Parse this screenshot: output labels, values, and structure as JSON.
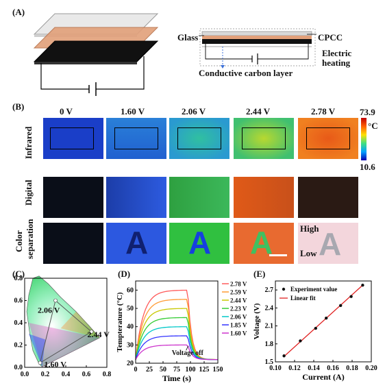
{
  "panels": {
    "A": {
      "label": "(A)",
      "layers_label_glass": "Glass",
      "layers_label_cpcc": "CPCC",
      "layers_label_heating_1": "Electric",
      "layers_label_heating_2": "heating",
      "layers_label_carbon": "Conductive carbon layer"
    },
    "B": {
      "label": "(B)",
      "voltages": [
        "0 V",
        "1.60 V",
        "2.06  V",
        "2.44 V",
        "2.78 V"
      ],
      "row_labels": [
        "Infrared",
        "Digital",
        "Color separation"
      ],
      "row_label_color_1": "Color",
      "row_label_color_2": "separation",
      "colorbar_max": "73.9",
      "colorbar_min": "10.6",
      "colorbar_unit": "°C",
      "high_label": "High",
      "low_label": "Low",
      "letter": "A"
    },
    "C": {
      "label": "(C)",
      "point_labels": [
        "2.06 V",
        "2.44 V",
        "1.60 V"
      ]
    },
    "D": {
      "label": "(D)",
      "annotation": "Voltage off"
    },
    "E": {
      "label": "(E)",
      "legend_points": "Experiment value",
      "legend_line": "Linear fit"
    }
  },
  "chart_data": [
    {
      "type": "scatter",
      "panel": "C",
      "title": "",
      "xlim": [
        0.0,
        0.8
      ],
      "ylim": [
        0.0,
        0.8
      ],
      "xticks": [
        "0.0",
        "0.2",
        "0.4",
        "0.6",
        "0.8"
      ],
      "yticks": [
        "0.0",
        "0.2",
        "0.4",
        "0.6",
        "0.8"
      ],
      "series": [
        {
          "name": "2.06 V",
          "x": [
            0.3
          ],
          "y": [
            0.6
          ]
        },
        {
          "name": "2.44 V",
          "x": [
            0.65
          ],
          "y": [
            0.32
          ]
        },
        {
          "name": "1.60 V",
          "x": [
            0.15
          ],
          "y": [
            0.04
          ]
        }
      ]
    },
    {
      "type": "line",
      "panel": "D",
      "xlabel": "Time (s)",
      "ylabel": "Tempterature (°C)",
      "xlim": [
        0,
        150
      ],
      "ylim": [
        20,
        65
      ],
      "xticks": [
        "0",
        "25",
        "50",
        "75",
        "100",
        "125",
        "150"
      ],
      "yticks": [
        "20",
        "30",
        "40",
        "50",
        "60"
      ],
      "off_time": 95,
      "series": [
        {
          "name": "2.78 V",
          "color": "#ff5a5a",
          "plateau": 60
        },
        {
          "name": "2.59 V",
          "color": "#ff9a33",
          "plateau": 55
        },
        {
          "name": "2.44 V",
          "color": "#c8c800",
          "plateau": 50
        },
        {
          "name": "2.23 V",
          "color": "#33cc33",
          "plateau": 45
        },
        {
          "name": "2.06 V",
          "color": "#00c8c8",
          "plateau": 40
        },
        {
          "name": "1.85 V",
          "color": "#3333ff",
          "plateau": 35
        },
        {
          "name": "1.60 V",
          "color": "#cc33cc",
          "plateau": 30
        }
      ],
      "baseline": 22
    },
    {
      "type": "scatter",
      "panel": "E",
      "xlabel": "Current (A)",
      "ylabel": "Voltage (V)",
      "xlim": [
        0.1,
        0.2
      ],
      "ylim": [
        1.5,
        2.85
      ],
      "xticks": [
        "0.10",
        "0.12",
        "0.14",
        "0.16",
        "0.18",
        "0.20"
      ],
      "yticks": [
        "1.5",
        "1.8",
        "2.1",
        "2.4",
        "2.7"
      ],
      "series": [
        {
          "name": "Experiment value",
          "x": [
            0.109,
            0.126,
            0.142,
            0.153,
            0.168,
            0.179,
            0.191
          ],
          "y": [
            1.6,
            1.85,
            2.06,
            2.23,
            2.44,
            2.59,
            2.78
          ]
        }
      ],
      "fit": {
        "name": "Linear fit",
        "x": [
          0.109,
          0.191
        ],
        "y": [
          1.59,
          2.78
        ]
      }
    }
  ]
}
